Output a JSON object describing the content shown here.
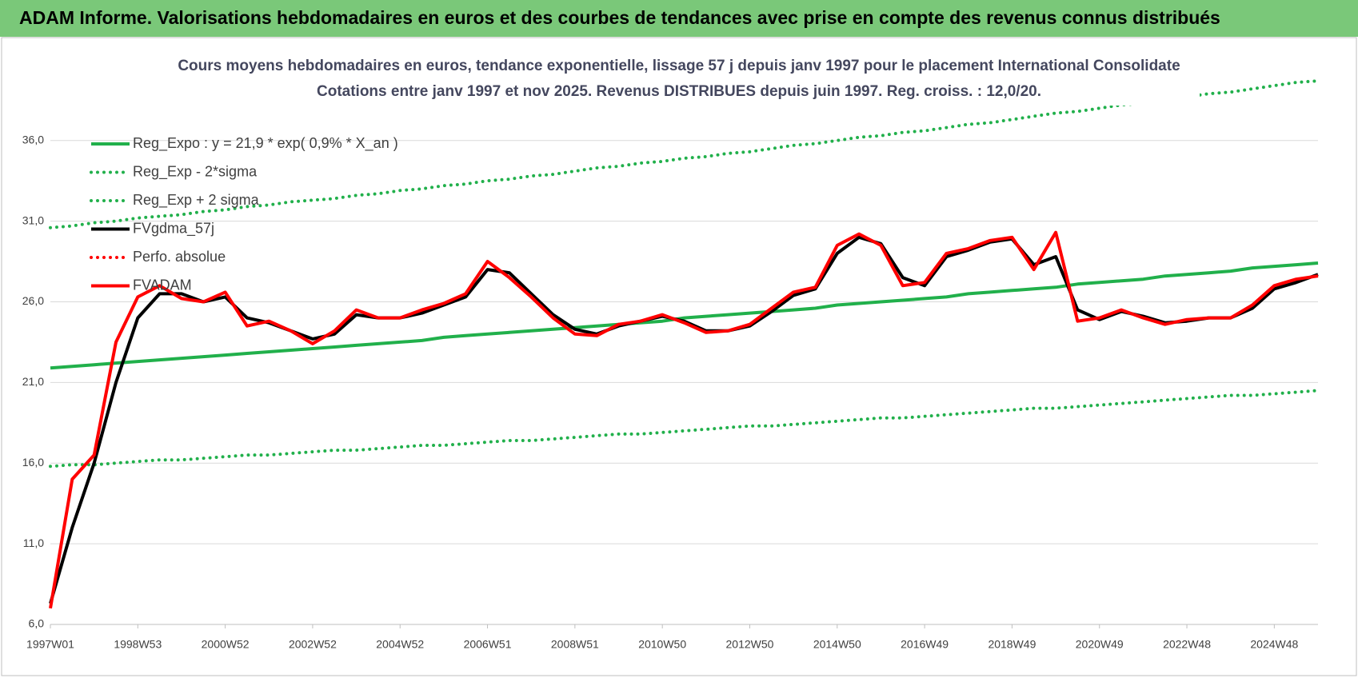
{
  "header": {
    "title": "ADAM Informe. Valorisations hebdomadaires en euros et des courbes de tendances avec prise en compte des revenus connus distribués"
  },
  "chart_data": {
    "type": "line",
    "title": "Cours moyens hebdomadaires en euros, tendance exponentielle, lissage 57 j depuis janv 1997 pour le placement International Consolidate",
    "subtitle": "Cotations entre janv 1997 et nov 2025. Revenus DISTRIBUES depuis juin 1997. Reg. croiss. : 12,0/20.",
    "categories": [
      "1997W01",
      null,
      null,
      null,
      "1998W53",
      null,
      null,
      null,
      "2000W52",
      null,
      null,
      null,
      "2002W52",
      null,
      null,
      null,
      "2004W52",
      null,
      null,
      null,
      "2006W51",
      null,
      null,
      null,
      "2008W51",
      null,
      null,
      null,
      "2010W50",
      null,
      null,
      null,
      "2012W50",
      null,
      null,
      null,
      "2014W50",
      null,
      null,
      null,
      "2016W49",
      null,
      null,
      null,
      "2018W49",
      null,
      null,
      null,
      "2020W49",
      null,
      null,
      null,
      "2022W48",
      null,
      null,
      null,
      "2024W48",
      null,
      null
    ],
    "ylim": [
      6,
      40
    ],
    "yticks": [
      {
        "value": 6,
        "label": "6,0"
      },
      {
        "value": 11,
        "label": "11,0"
      },
      {
        "value": 16,
        "label": "16,0"
      },
      {
        "value": 21,
        "label": "21,0"
      },
      {
        "value": 26,
        "label": "26,0"
      },
      {
        "value": 31,
        "label": "31,0"
      },
      {
        "value": 36,
        "label": "36,0"
      }
    ],
    "grid": true,
    "legend": "upper left",
    "series": [
      {
        "name": "Reg_Expo : y = 21,9 * exp( 0,9% *  X_an )",
        "color": "#21b04b",
        "style": "solid",
        "values": [
          21.9,
          22.0,
          22.1,
          22.2,
          22.3,
          22.4,
          22.5,
          22.6,
          22.7,
          22.8,
          22.9,
          23.0,
          23.1,
          23.2,
          23.3,
          23.4,
          23.5,
          23.6,
          23.8,
          23.9,
          24.0,
          24.1,
          24.2,
          24.3,
          24.4,
          24.5,
          24.6,
          24.7,
          24.8,
          25.0,
          25.1,
          25.2,
          25.3,
          25.4,
          25.5,
          25.6,
          25.8,
          25.9,
          26.0,
          26.1,
          26.2,
          26.3,
          26.5,
          26.6,
          26.7,
          26.8,
          26.9,
          27.1,
          27.2,
          27.3,
          27.4,
          27.6,
          27.7,
          27.8,
          27.9,
          28.1,
          28.2,
          28.3,
          28.4
        ]
      },
      {
        "name": "Reg_Exp - 2*sigma",
        "color": "#21b04b",
        "style": "dotted",
        "values": [
          15.8,
          15.9,
          15.9,
          16.0,
          16.1,
          16.2,
          16.2,
          16.3,
          16.4,
          16.5,
          16.5,
          16.6,
          16.7,
          16.8,
          16.8,
          16.9,
          17.0,
          17.1,
          17.1,
          17.2,
          17.3,
          17.4,
          17.4,
          17.5,
          17.6,
          17.7,
          17.8,
          17.8,
          17.9,
          18.0,
          18.1,
          18.2,
          18.3,
          18.3,
          18.4,
          18.5,
          18.6,
          18.7,
          18.8,
          18.8,
          18.9,
          19.0,
          19.1,
          19.2,
          19.3,
          19.4,
          19.4,
          19.5,
          19.6,
          19.7,
          19.8,
          19.9,
          20.0,
          20.1,
          20.2,
          20.2,
          20.3,
          20.4,
          20.5
        ]
      },
      {
        "name": "Reg_Exp + 2 sigma",
        "color": "#21b04b",
        "style": "dotted",
        "values": [
          30.6,
          30.7,
          30.9,
          31.0,
          31.2,
          31.3,
          31.4,
          31.6,
          31.7,
          31.9,
          32.0,
          32.2,
          32.3,
          32.4,
          32.6,
          32.7,
          32.9,
          33.0,
          33.2,
          33.3,
          33.5,
          33.6,
          33.8,
          33.9,
          34.1,
          34.3,
          34.4,
          34.6,
          34.7,
          34.9,
          35.0,
          35.2,
          35.3,
          35.5,
          35.7,
          35.8,
          36.0,
          36.2,
          36.3,
          36.5,
          36.6,
          36.8,
          37.0,
          37.1,
          37.3,
          37.5,
          37.7,
          37.8,
          38.0,
          38.2,
          38.3,
          38.5,
          38.7,
          38.9,
          39.0,
          39.2,
          39.4,
          39.6,
          39.7
        ]
      },
      {
        "name": "FVgdma_57j",
        "color": "#000000",
        "style": "solid",
        "values": [
          7.3,
          12.0,
          16.0,
          21.0,
          25.0,
          26.5,
          26.5,
          26.0,
          26.3,
          25.0,
          24.7,
          24.2,
          23.7,
          24.0,
          25.2,
          25.0,
          25.0,
          25.3,
          25.8,
          26.3,
          28.0,
          27.8,
          26.5,
          25.2,
          24.3,
          24.0,
          24.5,
          24.8,
          25.1,
          24.8,
          24.2,
          24.2,
          24.5,
          25.4,
          26.4,
          26.8,
          29.0,
          30.0,
          29.6,
          27.5,
          27.0,
          28.8,
          29.2,
          29.7,
          29.9,
          28.3,
          28.8,
          25.5,
          24.9,
          25.4,
          25.1,
          24.7,
          24.8,
          25.0,
          25.0,
          25.6,
          26.8,
          27.2,
          27.7
        ]
      },
      {
        "name": "Perfo. absolue",
        "color": "#ff0000",
        "style": "dotted"
      },
      {
        "name": "FVADAM",
        "color": "#ff0000",
        "style": "solid",
        "values": [
          7.0,
          15.0,
          16.5,
          23.5,
          26.3,
          27.0,
          26.2,
          26.0,
          26.6,
          24.5,
          24.8,
          24.2,
          23.4,
          24.2,
          25.5,
          25.0,
          25.0,
          25.5,
          25.9,
          26.5,
          28.5,
          27.5,
          26.3,
          25.0,
          24.0,
          23.9,
          24.6,
          24.8,
          25.2,
          24.7,
          24.1,
          24.2,
          24.6,
          25.6,
          26.6,
          26.9,
          29.5,
          30.2,
          29.5,
          27.0,
          27.2,
          29.0,
          29.3,
          29.8,
          30.0,
          28.0,
          30.3,
          24.8,
          25.0,
          25.5,
          25.0,
          24.6,
          24.9,
          25.0,
          25.0,
          25.8,
          27.0,
          27.4,
          27.6
        ]
      }
    ]
  }
}
